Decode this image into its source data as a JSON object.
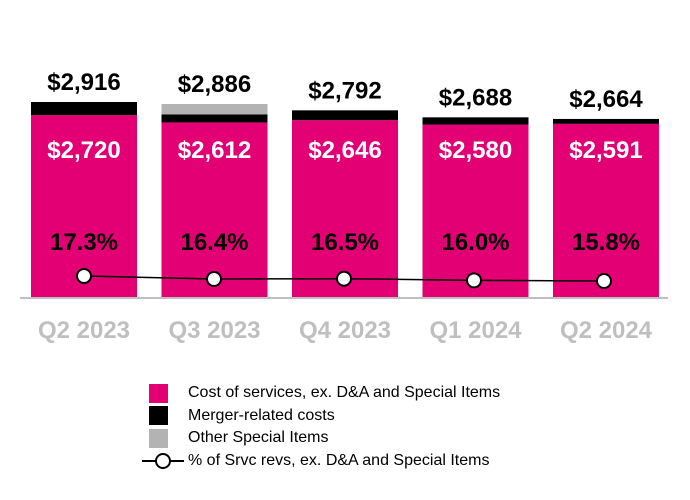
{
  "chart_data": {
    "type": "bar",
    "stacked": true,
    "categories": [
      "Q2 2023",
      "Q3 2023",
      "Q4 2023",
      "Q1 2024",
      "Q2 2024"
    ],
    "series": [
      {
        "name": "Cost of services, ex. D&A and Special Items",
        "color": "#e20074",
        "values": [
          2720,
          2612,
          2646,
          2580,
          2591
        ]
      },
      {
        "name": "Merger-related costs",
        "color": "#000000",
        "values": [
          196,
          120,
          146,
          108,
          73
        ]
      },
      {
        "name": "Other Special Items",
        "color": "#b3b3b3",
        "values": [
          0,
          154,
          0,
          0,
          0
        ]
      }
    ],
    "totals": [
      2916,
      2886,
      2792,
      2688,
      2664
    ],
    "total_labels": [
      "$2,916",
      "$2,886",
      "$2,792",
      "$2,688",
      "$2,664"
    ],
    "inner_labels": [
      "$2,720",
      "$2,612",
      "$2,646",
      "$2,580",
      "$2,591"
    ],
    "line_series": {
      "name": "% of Srvc revs, ex. D&A and Special Items",
      "values": [
        17.3,
        16.4,
        16.5,
        16.0,
        15.8
      ],
      "labels": [
        "17.3%",
        "16.4%",
        "16.5%",
        "16.0%",
        "15.8%"
      ]
    },
    "legend_position": "bottom",
    "grid": false
  }
}
